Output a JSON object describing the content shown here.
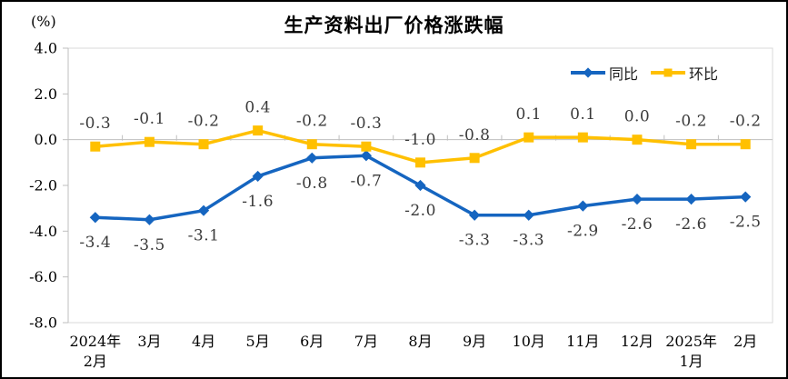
{
  "chart_data": {
    "type": "line",
    "title": "生产资料出厂价格涨跌幅",
    "unit_label": "(%)",
    "categories": [
      "2024年\n2月",
      "3月",
      "4月",
      "5月",
      "6月",
      "7月",
      "8月",
      "9月",
      "10月",
      "11月",
      "12月",
      "2025年\n1月",
      "2月"
    ],
    "series": [
      {
        "name": "同比",
        "color": "#1565C0",
        "marker": "diamond",
        "label_position": "below",
        "values": [
          -3.4,
          -3.5,
          -3.1,
          -1.6,
          -0.8,
          -0.7,
          -2.0,
          -3.3,
          -3.3,
          -2.9,
          -2.6,
          -2.6,
          -2.5
        ]
      },
      {
        "name": "环比",
        "color": "#FFC000",
        "marker": "square",
        "label_position": "above",
        "values": [
          -0.3,
          -0.1,
          -0.2,
          0.4,
          -0.2,
          -0.3,
          -1.0,
          -0.8,
          0.1,
          0.1,
          0.0,
          -0.2,
          -0.2
        ]
      }
    ],
    "y_axis": {
      "min": -8,
      "max": 4,
      "tick_step": 2,
      "tick_labels": [
        "4.0",
        "2.0",
        "0.0",
        "-2.0",
        "-4.0",
        "-6.0",
        "-8.0"
      ]
    },
    "legend_position": "top-right",
    "grid": "zero-line-only",
    "colors": {
      "axis": "#BFBFBF",
      "plot_border": "#D9D9D9",
      "data_label_text": "#3A3A3A",
      "tick_text": "#000000",
      "background": "#FFFFFF",
      "outer_border": "#000000"
    }
  }
}
